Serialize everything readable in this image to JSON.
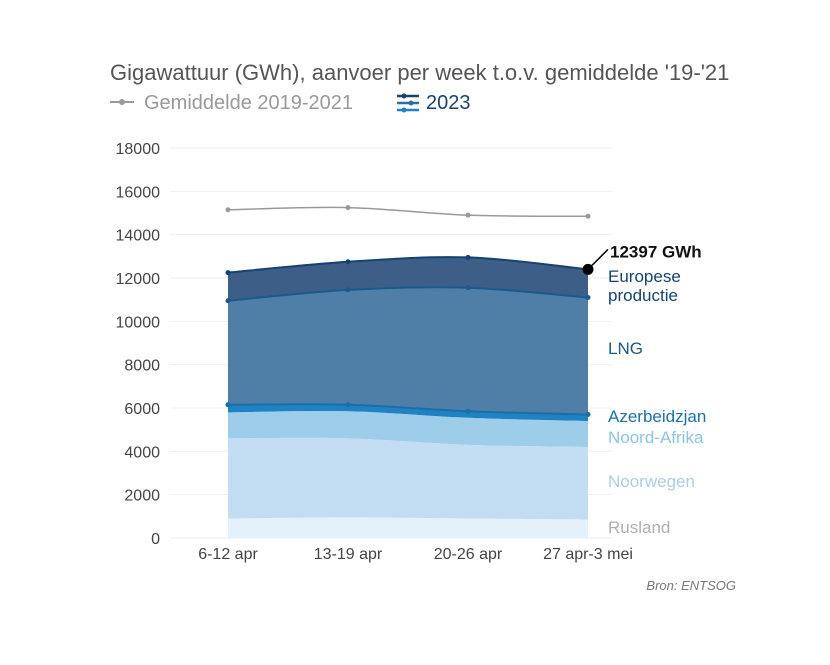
{
  "chart_data": {
    "type": "area",
    "title": "Gigawattuur (GWh), aanvoer per week t.o.v. gemiddelde '19-'21",
    "legend": [
      {
        "label": "Gemiddelde 2019-2021",
        "color": "#999999"
      },
      {
        "label": "2023",
        "color": "#154273"
      }
    ],
    "categories": [
      "6-12 apr",
      "13-19 apr",
      "20-26 apr",
      "27 apr-3 mei"
    ],
    "ylim": [
      0,
      18000
    ],
    "yticks": [
      "0",
      "2000",
      "4000",
      "6000",
      "8000",
      "10000",
      "12000",
      "14000",
      "16000",
      "18000"
    ],
    "grid": true,
    "average": {
      "name": "Gemiddelde 2019-2021",
      "values": [
        15150,
        15250,
        14900,
        14850
      ],
      "color": "#999999"
    },
    "series": [
      {
        "name": "Rusland",
        "values": [
          900,
          950,
          900,
          850
        ],
        "color": "#e5f1fa",
        "label_color": "#b0b0b0"
      },
      {
        "name": "Noorwegen",
        "values": [
          3700,
          3650,
          3400,
          3350
        ],
        "color": "#c2ddf1",
        "label_color": "#a9cde8"
      },
      {
        "name": "Noord-Afrika",
        "values": [
          1200,
          1250,
          1250,
          1200
        ],
        "color": "#9ecde9",
        "label_color": "#8cc3e3"
      },
      {
        "name": "Azerbeidzjan",
        "values": [
          350,
          300,
          300,
          300
        ],
        "color": "#1f82c4",
        "label_color": "#1b6fa8"
      },
      {
        "name": "LNG",
        "values": [
          4800,
          5300,
          5700,
          5400
        ],
        "color": "#4f7ea6",
        "label_color": "#1b5a8a"
      },
      {
        "name": "Europese productie",
        "values": [
          1300,
          1300,
          1400,
          1297
        ],
        "color": "#3c5e87",
        "label_color": "#154273"
      }
    ],
    "series_labels": {
      "Europese productie": [
        "Europese",
        "productie"
      ]
    },
    "annotation": "12397 GWh",
    "source": "Bron: ENTSOG"
  }
}
